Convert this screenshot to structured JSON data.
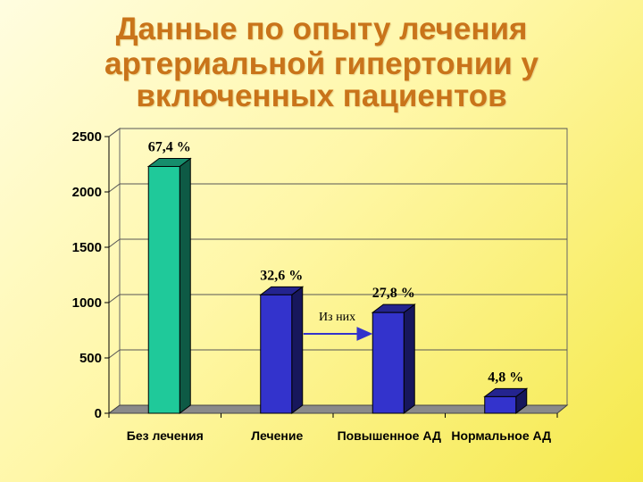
{
  "slide": {
    "title_lines": [
      "Данные по опыту лечения",
      "артериальной гипертонии у",
      "включенных пациентов"
    ]
  },
  "chart_data": {
    "type": "bar",
    "categories": [
      "Без лечения",
      "Лечение",
      "Повышенное АД",
      "Нормальное АД"
    ],
    "values": [
      2230,
      1070,
      910,
      150
    ],
    "data_labels": [
      "67,4 %",
      "32,6 %",
      "27,8 %",
      "4,8 %"
    ],
    "ylim": [
      0,
      2500
    ],
    "yticks": [
      0,
      500,
      1000,
      1500,
      2000,
      2500
    ],
    "grid": true,
    "legend": "none",
    "bar_colors": [
      "#1fc99a",
      "#3333cc",
      "#3333cc",
      "#3333cc"
    ],
    "annotation": {
      "text": "Из них",
      "from_category": "Лечение",
      "to_category": "Повышенное АД",
      "arrow_color": "#3333cc"
    },
    "title": "",
    "xlabel": "",
    "ylabel": ""
  },
  "colors": {
    "title": "#c9741a",
    "bar_teal": "#1fc99a",
    "bar_blue": "#3333cc",
    "floor": "#8a8a8a"
  }
}
